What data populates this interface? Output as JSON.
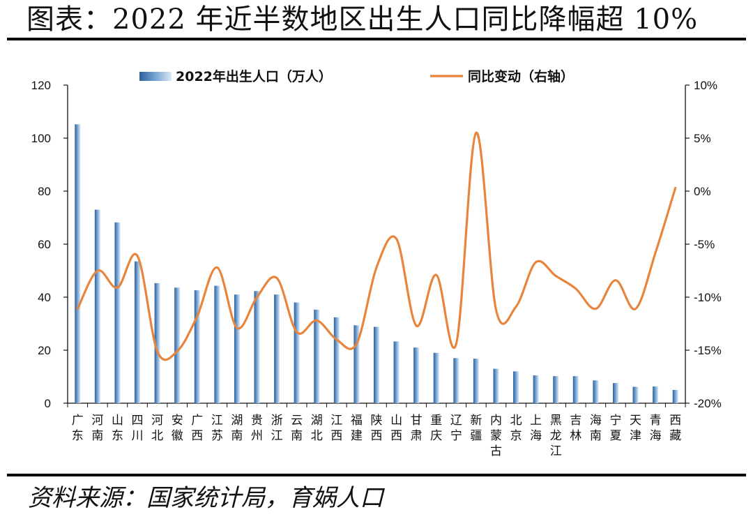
{
  "title": "图表：2022 年近半数地区出生人口同比降幅超 10%",
  "source": "资料来源：国家统计局，育娲人口",
  "chart_data": {
    "type": "bar+line",
    "categories": [
      "广东",
      "河南",
      "山东",
      "四川",
      "河北",
      "安徽",
      "广西",
      "江苏",
      "湖南",
      "贵州",
      "浙江",
      "云南",
      "湖北",
      "江西",
      "福建",
      "陕西",
      "山西",
      "甘肃",
      "重庆",
      "辽宁",
      "新疆",
      "内蒙古",
      "北京",
      "上海",
      "黑龙江",
      "吉林",
      "海南",
      "宁夏",
      "天津",
      "青海",
      "西藏"
    ],
    "series": [
      {
        "name": "2022年出生人口（万人）",
        "type": "bar",
        "axis": "left",
        "color": "#5b8fc4",
        "values": [
          105.2,
          73.0,
          68.2,
          53.5,
          45.3,
          43.6,
          42.6,
          44.3,
          41.0,
          42.3,
          41.0,
          38.0,
          35.3,
          32.4,
          29.4,
          28.8,
          23.3,
          21.0,
          19.0,
          17.0,
          16.8,
          13.0,
          12.0,
          10.5,
          10.2,
          10.2,
          8.6,
          7.6,
          6.2,
          6.3,
          5.0
        ]
      },
      {
        "name": "同比变动（右轴）",
        "type": "line",
        "axis": "right",
        "color": "#e8843c",
        "values": [
          -11.1,
          -7.5,
          -9.1,
          -6.1,
          -15.1,
          -15.1,
          -11.8,
          -7.2,
          -12.9,
          -10.0,
          -8.2,
          -13.3,
          -12.2,
          -14.0,
          -14.4,
          -7.2,
          -4.5,
          -12.7,
          -7.9,
          -14.4,
          5.5,
          -11.2,
          -10.9,
          -6.7,
          -8.0,
          -9.2,
          -11.1,
          -8.4,
          -11.1,
          -5.8,
          0.3
        ]
      }
    ],
    "y_left": {
      "min": 0,
      "max": 120,
      "step": 20,
      "ticks": [
        "0",
        "20",
        "40",
        "60",
        "80",
        "100",
        "120"
      ]
    },
    "y_right": {
      "min": -20,
      "max": 10,
      "step": 5,
      "ticks": [
        "-20%",
        "-15%",
        "-10%",
        "-5%",
        "0%",
        "5%",
        "10%"
      ]
    },
    "legend": {
      "position": "top-center"
    },
    "grid": false
  }
}
